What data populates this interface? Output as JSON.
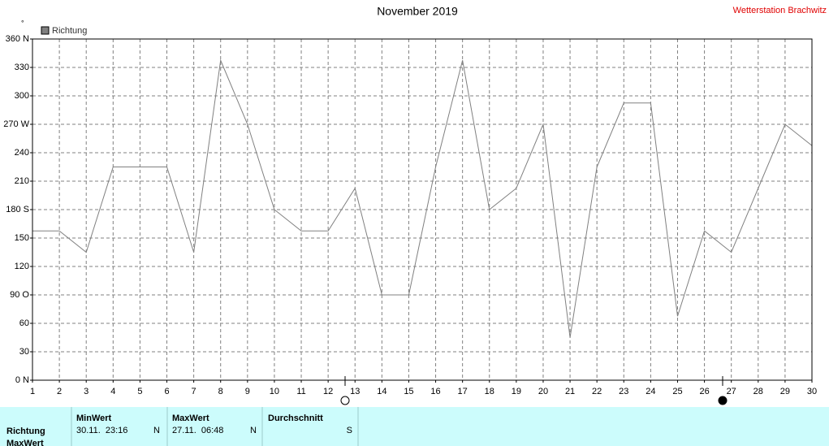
{
  "chart_data": {
    "type": "line",
    "title": "November 2019",
    "station": "Wetterstation Brachwitz",
    "unit": "°",
    "x": [
      1,
      2,
      3,
      4,
      5,
      6,
      7,
      8,
      9,
      10,
      11,
      12,
      13,
      14,
      15,
      16,
      17,
      18,
      19,
      20,
      21,
      22,
      23,
      24,
      25,
      26,
      27,
      28,
      29,
      30
    ],
    "xlim": [
      1,
      30
    ],
    "xticks": [
      1,
      2,
      3,
      4,
      5,
      6,
      7,
      8,
      9,
      10,
      11,
      12,
      13,
      14,
      15,
      16,
      17,
      18,
      19,
      20,
      21,
      22,
      23,
      24,
      25,
      26,
      27,
      28,
      29,
      30
    ],
    "ylim": [
      0,
      360
    ],
    "yticks": [
      {
        "value": 0,
        "label": "0 N"
      },
      30,
      60,
      {
        "value": 90,
        "label": "90 O"
      },
      120,
      150,
      {
        "value": 180,
        "label": "180 S"
      },
      210,
      240,
      {
        "value": 270,
        "label": "270 W"
      },
      300,
      330,
      {
        "value": 360,
        "label": "360 N"
      }
    ],
    "grid": true,
    "series": [
      {
        "name": "Richtung",
        "color": "#808080",
        "values": [
          157.5,
          157.5,
          135,
          225,
          225,
          225,
          135,
          337.5,
          270,
          180,
          157.5,
          157.5,
          202.5,
          90,
          90,
          225,
          337.5,
          180,
          202.5,
          270,
          45,
          225,
          292.5,
          292.5,
          67.5,
          157.5,
          135,
          202.5,
          270,
          247.5
        ]
      }
    ]
  },
  "table": {
    "headers": [
      "MinWert",
      "MaxWert",
      "Durchschnitt"
    ],
    "rows": [
      [
        "Richtung",
        "30.11.  23:16",
        "N",
        "27.11.  06:48",
        "N",
        "S"
      ],
      [
        "MaxWert"
      ]
    ]
  }
}
